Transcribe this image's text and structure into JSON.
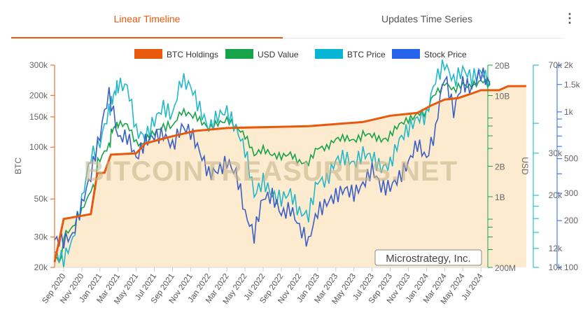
{
  "tabs": [
    {
      "label": "Linear Timeline",
      "active": true
    },
    {
      "label": "Updates Time Series",
      "active": false
    }
  ],
  "menu_icon": "kebab-icon",
  "chart_data": {
    "type": "line",
    "watermark": "BITCOINTREASURIES.NET",
    "company_label": "Microstrategy, Inc.",
    "legend": [
      {
        "name": "BTC Holdings",
        "color": "#e8590c"
      },
      {
        "name": "USD Value",
        "color": "#16a34a"
      },
      {
        "name": "BTC Price",
        "color": "#06b6d4"
      },
      {
        "name": "Stock Price",
        "color": "#2563eb"
      }
    ],
    "x_ticks": [
      "Sep 2020",
      "Nov 2020",
      "Jan 2021",
      "Mar 2021",
      "May 2021",
      "Jul 2021",
      "Sep 2021",
      "Nov 2021",
      "Jan 2022",
      "Mar 2022",
      "May 2022",
      "Jul 2022",
      "Sep 2022",
      "Nov 2022",
      "Jan 2023",
      "Mar 2023",
      "May 2023",
      "Jul 2023",
      "Sep 2023",
      "Nov 2023",
      "Jan 2024",
      "Mar 2024",
      "May 2024",
      "Jul 2024"
    ],
    "x_start": "Aug 2020",
    "axes": {
      "btc": {
        "label": "BTC",
        "ticks": [
          "20k",
          "30k",
          "50k",
          "100k",
          "150k",
          "200k",
          "300k"
        ],
        "tick_values": [
          20000,
          30000,
          50000,
          100000,
          150000,
          200000,
          300000
        ],
        "range": [
          20000,
          300000
        ],
        "scale": "log"
      },
      "usd": {
        "label": "USD",
        "ticks": [
          "200M",
          "1B",
          "2B",
          "10B",
          "20B"
        ],
        "tick_values": [
          200000000.0,
          1000000000.0,
          2000000000.0,
          10000000000.0,
          20000000000.0
        ],
        "range": [
          200000000.0,
          20000000000.0
        ],
        "scale": "log"
      },
      "btc_price": {
        "ticks": [
          "10k",
          "12k",
          "20k",
          "30k",
          "70k"
        ],
        "tick_values": [
          10000,
          12000,
          20000,
          30000,
          70000
        ],
        "range": [
          10000,
          70000
        ],
        "scale": "log"
      },
      "stock_price": {
        "ticks": [
          "100",
          "200",
          "300",
          "500",
          "1k",
          "1.5k",
          "2k"
        ],
        "tick_values": [
          100,
          200,
          300,
          500,
          1000,
          1500,
          2000
        ],
        "range": [
          100,
          2000
        ],
        "scale": "log"
      }
    },
    "btc_holdings": [
      [
        0,
        21454
      ],
      [
        1,
        38250
      ],
      [
        4,
        40824
      ],
      [
        4.7,
        70470
      ],
      [
        5.5,
        71079
      ],
      [
        6.2,
        90531
      ],
      [
        9,
        92079
      ],
      [
        10,
        105085
      ],
      [
        12.5,
        114042
      ],
      [
        15.5,
        124391
      ],
      [
        19,
        129218
      ],
      [
        28,
        132500
      ],
      [
        34,
        140000
      ],
      [
        37,
        152333
      ],
      [
        40,
        158245
      ],
      [
        41.5,
        174530
      ],
      [
        43,
        189150
      ],
      [
        44.5,
        193000
      ],
      [
        46,
        205000
      ],
      [
        47,
        214246
      ],
      [
        49,
        214400
      ],
      [
        50,
        226331
      ],
      [
        52,
        226500
      ]
    ],
    "btc_price": [
      [
        0,
        11500
      ],
      [
        1,
        10800
      ],
      [
        2,
        13000
      ],
      [
        3,
        19000
      ],
      [
        4,
        29000
      ],
      [
        5,
        33000
      ],
      [
        6,
        45000
      ],
      [
        6.5,
        52000
      ],
      [
        7,
        58000
      ],
      [
        8,
        57000
      ],
      [
        9,
        37000
      ],
      [
        10,
        35000
      ],
      [
        11,
        41000
      ],
      [
        12,
        47000
      ],
      [
        13,
        43000
      ],
      [
        14,
        61000
      ],
      [
        15,
        57000
      ],
      [
        16,
        46000
      ],
      [
        17,
        38000
      ],
      [
        18,
        43000
      ],
      [
        19,
        45000
      ],
      [
        20,
        38000
      ],
      [
        21,
        31000
      ],
      [
        22,
        20000
      ],
      [
        23,
        23000
      ],
      [
        24,
        20000
      ],
      [
        25,
        19400
      ],
      [
        26,
        20500
      ],
      [
        27,
        17000
      ],
      [
        28,
        16500
      ],
      [
        29,
        23000
      ],
      [
        30,
        23000
      ],
      [
        31,
        28000
      ],
      [
        32,
        29000
      ],
      [
        33,
        27000
      ],
      [
        34,
        30000
      ],
      [
        35,
        29000
      ],
      [
        36,
        26000
      ],
      [
        37,
        27000
      ],
      [
        38,
        34000
      ],
      [
        39,
        38000
      ],
      [
        40,
        42000
      ],
      [
        41,
        43000
      ],
      [
        42,
        61000
      ],
      [
        43,
        71000
      ],
      [
        44,
        60000
      ],
      [
        45,
        67000
      ],
      [
        46,
        62000
      ],
      [
        47,
        66000
      ],
      [
        48,
        60000
      ]
    ],
    "stock_price": [
      [
        0,
        150
      ],
      [
        1,
        150
      ],
      [
        2,
        160
      ],
      [
        3,
        250
      ],
      [
        4,
        390
      ],
      [
        5,
        700
      ],
      [
        6,
        1300
      ],
      [
        7,
        680
      ],
      [
        8,
        700
      ],
      [
        9,
        500
      ],
      [
        10,
        650
      ],
      [
        11,
        700
      ],
      [
        12,
        720
      ],
      [
        13,
        600
      ],
      [
        14,
        800
      ],
      [
        15,
        750
      ],
      [
        16,
        550
      ],
      [
        17,
        400
      ],
      [
        18,
        420
      ],
      [
        19,
        480
      ],
      [
        20,
        400
      ],
      [
        21,
        220
      ],
      [
        22,
        160
      ],
      [
        23,
        280
      ],
      [
        24,
        290
      ],
      [
        25,
        220
      ],
      [
        26,
        240
      ],
      [
        27,
        180
      ],
      [
        28,
        145
      ],
      [
        29,
        230
      ],
      [
        30,
        260
      ],
      [
        31,
        290
      ],
      [
        32,
        320
      ],
      [
        33,
        300
      ],
      [
        34,
        340
      ],
      [
        35,
        430
      ],
      [
        36,
        330
      ],
      [
        37,
        330
      ],
      [
        38,
        380
      ],
      [
        39,
        470
      ],
      [
        40,
        630
      ],
      [
        41,
        500
      ],
      [
        42,
        750
      ],
      [
        43,
        1700
      ],
      [
        44,
        1000
      ],
      [
        45,
        1550
      ],
      [
        46,
        1400
      ],
      [
        47,
        1800
      ],
      [
        48,
        1500
      ]
    ]
  }
}
